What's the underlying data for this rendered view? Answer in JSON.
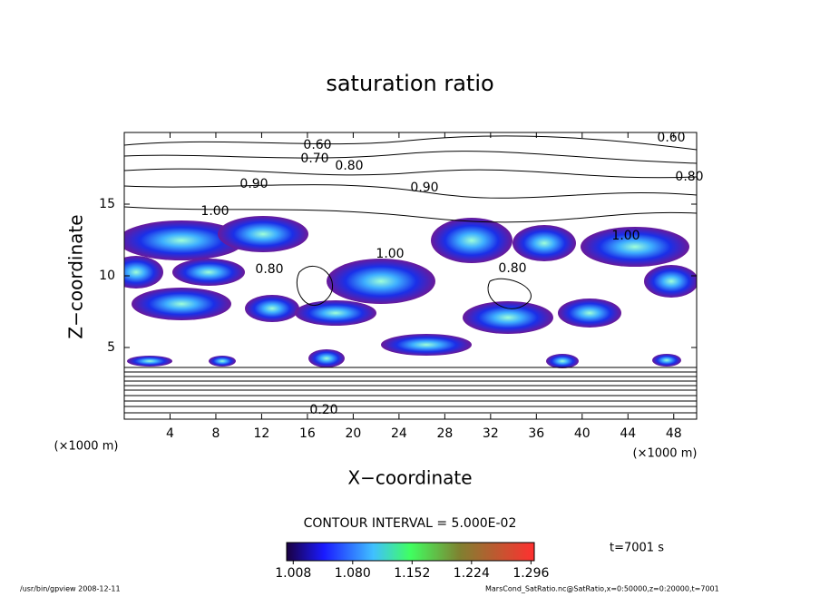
{
  "chart_data": {
    "type": "contour",
    "title": "saturation ratio",
    "xlabel": "X−coordinate",
    "ylabel": "Z−coordinate",
    "x_unit_left": "(×1000 m)",
    "x_unit_right": "(×1000 m)",
    "xlim": [
      0,
      50
    ],
    "xticks": [
      4,
      8,
      12,
      16,
      20,
      24,
      28,
      32,
      36,
      40,
      44,
      48
    ],
    "ylim": [
      0,
      20
    ],
    "yticks": [
      5,
      10,
      15
    ],
    "contour_labels": [
      "0.60",
      "0.70",
      "0.80",
      "0.90",
      "0.90",
      "1.00",
      "1.00",
      "1.00",
      "0.80",
      "0.80",
      "0.80",
      "0.60",
      "0.20"
    ],
    "contour_interval": "CONTOUR INTERVAL = 5.000E-02",
    "colorbar": {
      "clim": [
        1.0,
        1.3
      ],
      "ticks": [
        1.008,
        {
          "value": 1.08,
          "label": "1.080"
        },
        1.152,
        1.224,
        1.296
      ]
    },
    "time_label": "t=7001 s",
    "footer_left": "/usr/bin/gpview   2008-12-11",
    "footer_right": "MarsCond_SatRatio.nc@SatRatio,x=0:50000,z=0:20000,t=7001"
  }
}
